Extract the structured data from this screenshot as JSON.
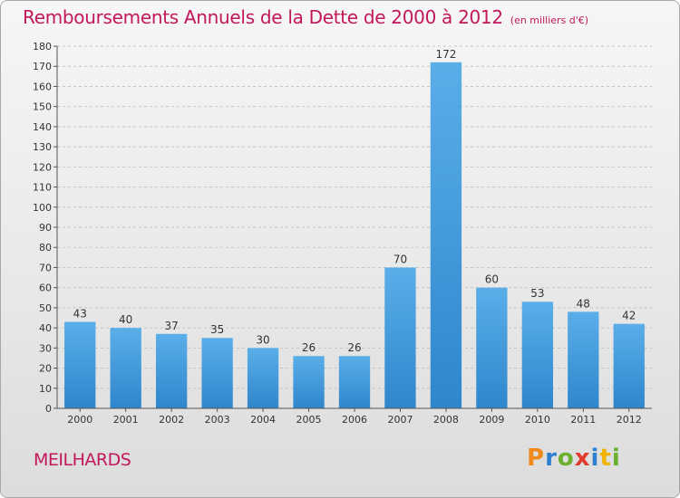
{
  "title": "Remboursements Annuels de la Dette de 2000 à 2012",
  "subtitle": "(en milliers d'€)",
  "place": "MEILHARDS",
  "brand": {
    "text": "Proxiti",
    "letter_colors": [
      "#f08a1c",
      "#2e7fd0",
      "#6ab02e",
      "#e03b2e",
      "#2e7fd0",
      "#f0b400",
      "#6ab02e"
    ]
  },
  "colors": {
    "title": "#c2185b",
    "bar_top": "#5aaee8",
    "bar_bottom": "#2f86cc"
  },
  "chart_data": {
    "type": "bar",
    "title": "Remboursements Annuels de la Dette de 2000 à 2012",
    "subtitle": "(en milliers d'€)",
    "categories": [
      "2000",
      "2001",
      "2002",
      "2003",
      "2004",
      "2005",
      "2006",
      "2007",
      "2008",
      "2009",
      "2010",
      "2011",
      "2012"
    ],
    "values": [
      43,
      40,
      37,
      35,
      30,
      26,
      26,
      70,
      172,
      60,
      53,
      48,
      42
    ],
    "ylim": [
      0,
      180
    ],
    "yticks": [
      0,
      10,
      20,
      30,
      40,
      50,
      60,
      70,
      80,
      90,
      100,
      110,
      120,
      130,
      140,
      150,
      160,
      170,
      180
    ],
    "grid": "horizontal dashed",
    "legend": "none"
  }
}
